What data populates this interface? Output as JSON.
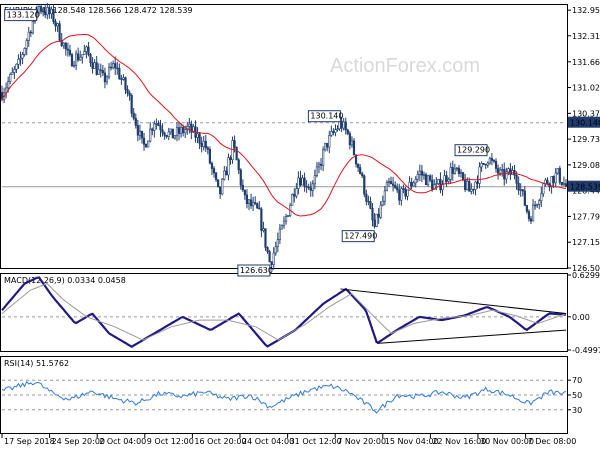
{
  "header": {
    "symbol": "EURJPY,H4",
    "ohlc": "128.548 128.566 128.472 128.539"
  },
  "watermark": "ActionForex.com",
  "colors": {
    "candle": "#1f3d6e",
    "ma": "#e8101a",
    "macd_hist": "#1e1a8a",
    "macd_signal": "#9a9a9a",
    "rsi": "#2f7be0",
    "grid": "#9a9a9a",
    "price_box": "#1f3d6e"
  },
  "chart_data": [
    {
      "type": "candlestick",
      "title": "EURJPY,H4",
      "ylim": [
        126.505,
        133.06
      ],
      "y_ticks": [
        "132.955",
        "132.315",
        "131.665",
        "131.020",
        "130.375",
        "129.730",
        "129.085",
        "128.440",
        "127.795",
        "127.150",
        "126.505"
      ],
      "x_ticks": [
        "17 Sep 2018",
        "24 Sep 20:00",
        "2 Oct 04:00",
        "9 Oct 12:00",
        "16 Oct 20:00",
        "24 Oct 04:00",
        "31 Oct 12:00",
        "7 Nov 20:00",
        "15 Nov 04:00",
        "22 Nov 16:00",
        "30 Nov 00:00",
        "7 Dec 08:00"
      ],
      "current_price": "128.539",
      "horizontal_level": {
        "value": 130.14,
        "label": "130.140"
      },
      "moving_average": "red line",
      "price_path": [
        {
          "x": 0,
          "y": 130.9
        },
        {
          "x": 0.03,
          "y": 131.6
        },
        {
          "x": 0.05,
          "y": 132.5
        },
        {
          "x": 0.065,
          "y": 133.05
        },
        {
          "x": 0.09,
          "y": 132.8
        },
        {
          "x": 0.12,
          "y": 131.7
        },
        {
          "x": 0.15,
          "y": 131.9
        },
        {
          "x": 0.18,
          "y": 131.2
        },
        {
          "x": 0.2,
          "y": 131.6
        },
        {
          "x": 0.225,
          "y": 130.8
        },
        {
          "x": 0.25,
          "y": 129.5
        },
        {
          "x": 0.27,
          "y": 130.2
        },
        {
          "x": 0.3,
          "y": 129.8
        },
        {
          "x": 0.33,
          "y": 130.0
        },
        {
          "x": 0.36,
          "y": 129.6
        },
        {
          "x": 0.385,
          "y": 128.3
        },
        {
          "x": 0.41,
          "y": 129.6
        },
        {
          "x": 0.43,
          "y": 128.2
        },
        {
          "x": 0.455,
          "y": 127.9
        },
        {
          "x": 0.475,
          "y": 126.63
        },
        {
          "x": 0.5,
          "y": 127.6
        },
        {
          "x": 0.525,
          "y": 128.8
        },
        {
          "x": 0.55,
          "y": 128.5
        },
        {
          "x": 0.575,
          "y": 129.6
        },
        {
          "x": 0.6,
          "y": 130.14
        },
        {
          "x": 0.615,
          "y": 129.8
        },
        {
          "x": 0.635,
          "y": 128.9
        },
        {
          "x": 0.66,
          "y": 127.49
        },
        {
          "x": 0.685,
          "y": 128.6
        },
        {
          "x": 0.71,
          "y": 128.3
        },
        {
          "x": 0.74,
          "y": 128.9
        },
        {
          "x": 0.77,
          "y": 128.5
        },
        {
          "x": 0.8,
          "y": 129.0
        },
        {
          "x": 0.83,
          "y": 128.4
        },
        {
          "x": 0.86,
          "y": 129.29
        },
        {
          "x": 0.885,
          "y": 128.8
        },
        {
          "x": 0.91,
          "y": 128.9
        },
        {
          "x": 0.935,
          "y": 127.75
        },
        {
          "x": 0.96,
          "y": 128.6
        },
        {
          "x": 0.985,
          "y": 128.85
        },
        {
          "x": 1.0,
          "y": 128.539
        }
      ],
      "swing_labels": [
        {
          "label": "133.120",
          "x": 0.065,
          "y": 133.12
        },
        {
          "label": "126.630",
          "x": 0.475,
          "y": 126.63
        },
        {
          "label": "130.140",
          "x": 0.6,
          "y": 130.14
        },
        {
          "label": "127.490",
          "x": 0.66,
          "y": 127.49
        },
        {
          "label": "129.290",
          "x": 0.86,
          "y": 129.29
        }
      ]
    },
    {
      "type": "line",
      "title": "MACD(12,26,9) 0.0334 0.0458",
      "ylim": [
        -0.4997,
        0.6299
      ],
      "y_ticks": [
        "0.6299",
        "0.00",
        "-0.4997"
      ],
      "zero_line": true,
      "series": [
        {
          "name": "MACD",
          "points": [
            {
              "x": 0,
              "y": 0.1
            },
            {
              "x": 0.04,
              "y": 0.5
            },
            {
              "x": 0.065,
              "y": 0.6
            },
            {
              "x": 0.09,
              "y": 0.3
            },
            {
              "x": 0.13,
              "y": -0.1
            },
            {
              "x": 0.16,
              "y": 0.05
            },
            {
              "x": 0.19,
              "y": -0.25
            },
            {
              "x": 0.23,
              "y": -0.45
            },
            {
              "x": 0.28,
              "y": -0.2
            },
            {
              "x": 0.32,
              "y": 0.0
            },
            {
              "x": 0.37,
              "y": -0.2
            },
            {
              "x": 0.42,
              "y": 0.05
            },
            {
              "x": 0.47,
              "y": -0.45
            },
            {
              "x": 0.52,
              "y": -0.2
            },
            {
              "x": 0.57,
              "y": 0.2
            },
            {
              "x": 0.61,
              "y": 0.42
            },
            {
              "x": 0.645,
              "y": 0.1
            },
            {
              "x": 0.665,
              "y": -0.4
            },
            {
              "x": 0.7,
              "y": -0.2
            },
            {
              "x": 0.74,
              "y": 0.0
            },
            {
              "x": 0.78,
              "y": -0.05
            },
            {
              "x": 0.82,
              "y": 0.02
            },
            {
              "x": 0.86,
              "y": 0.15
            },
            {
              "x": 0.9,
              "y": 0.0
            },
            {
              "x": 0.93,
              "y": -0.2
            },
            {
              "x": 0.97,
              "y": 0.05
            },
            {
              "x": 1.0,
              "y": 0.0334
            }
          ]
        },
        {
          "name": "Signal",
          "points": [
            {
              "x": 0,
              "y": 0.05
            },
            {
              "x": 0.05,
              "y": 0.4
            },
            {
              "x": 0.08,
              "y": 0.5
            },
            {
              "x": 0.11,
              "y": 0.25
            },
            {
              "x": 0.15,
              "y": 0.0
            },
            {
              "x": 0.2,
              "y": -0.15
            },
            {
              "x": 0.25,
              "y": -0.35
            },
            {
              "x": 0.3,
              "y": -0.15
            },
            {
              "x": 0.35,
              "y": -0.05
            },
            {
              "x": 0.4,
              "y": -0.05
            },
            {
              "x": 0.45,
              "y": -0.15
            },
            {
              "x": 0.49,
              "y": -0.35
            },
            {
              "x": 0.54,
              "y": -0.1
            },
            {
              "x": 0.58,
              "y": 0.15
            },
            {
              "x": 0.62,
              "y": 0.35
            },
            {
              "x": 0.66,
              "y": 0.0
            },
            {
              "x": 0.69,
              "y": -0.25
            },
            {
              "x": 0.73,
              "y": -0.1
            },
            {
              "x": 0.78,
              "y": -0.02
            },
            {
              "x": 0.83,
              "y": 0.02
            },
            {
              "x": 0.87,
              "y": 0.1
            },
            {
              "x": 0.91,
              "y": 0.02
            },
            {
              "x": 0.95,
              "y": -0.1
            },
            {
              "x": 1.0,
              "y": 0.0458
            }
          ]
        }
      ],
      "trendlines": [
        {
          "from": {
            "x": 0.6,
            "y": 0.42
          },
          "to": {
            "x": 1.0,
            "y": 0.05
          }
        },
        {
          "from": {
            "x": 0.665,
            "y": -0.4
          },
          "to": {
            "x": 1.0,
            "y": -0.2
          }
        }
      ]
    },
    {
      "type": "line",
      "title": "RSI(14) 51.5762",
      "ylim": [
        0,
        100
      ],
      "y_ticks": [
        "70",
        "50",
        "30"
      ],
      "reference_lines": [
        70,
        50,
        30
      ],
      "series": [
        {
          "name": "RSI",
          "points": [
            {
              "x": 0,
              "y": 55
            },
            {
              "x": 0.03,
              "y": 62
            },
            {
              "x": 0.06,
              "y": 68
            },
            {
              "x": 0.09,
              "y": 52
            },
            {
              "x": 0.12,
              "y": 44
            },
            {
              "x": 0.16,
              "y": 55
            },
            {
              "x": 0.2,
              "y": 45
            },
            {
              "x": 0.24,
              "y": 39
            },
            {
              "x": 0.28,
              "y": 52
            },
            {
              "x": 0.32,
              "y": 48
            },
            {
              "x": 0.36,
              "y": 54
            },
            {
              "x": 0.4,
              "y": 44
            },
            {
              "x": 0.44,
              "y": 50
            },
            {
              "x": 0.475,
              "y": 34
            },
            {
              "x": 0.51,
              "y": 46
            },
            {
              "x": 0.55,
              "y": 58
            },
            {
              "x": 0.585,
              "y": 62
            },
            {
              "x": 0.615,
              "y": 54
            },
            {
              "x": 0.645,
              "y": 38
            },
            {
              "x": 0.665,
              "y": 28
            },
            {
              "x": 0.7,
              "y": 50
            },
            {
              "x": 0.74,
              "y": 48
            },
            {
              "x": 0.78,
              "y": 54
            },
            {
              "x": 0.82,
              "y": 46
            },
            {
              "x": 0.86,
              "y": 58
            },
            {
              "x": 0.9,
              "y": 50
            },
            {
              "x": 0.935,
              "y": 38
            },
            {
              "x": 0.97,
              "y": 54
            },
            {
              "x": 1.0,
              "y": 51.58
            }
          ]
        }
      ]
    }
  ]
}
